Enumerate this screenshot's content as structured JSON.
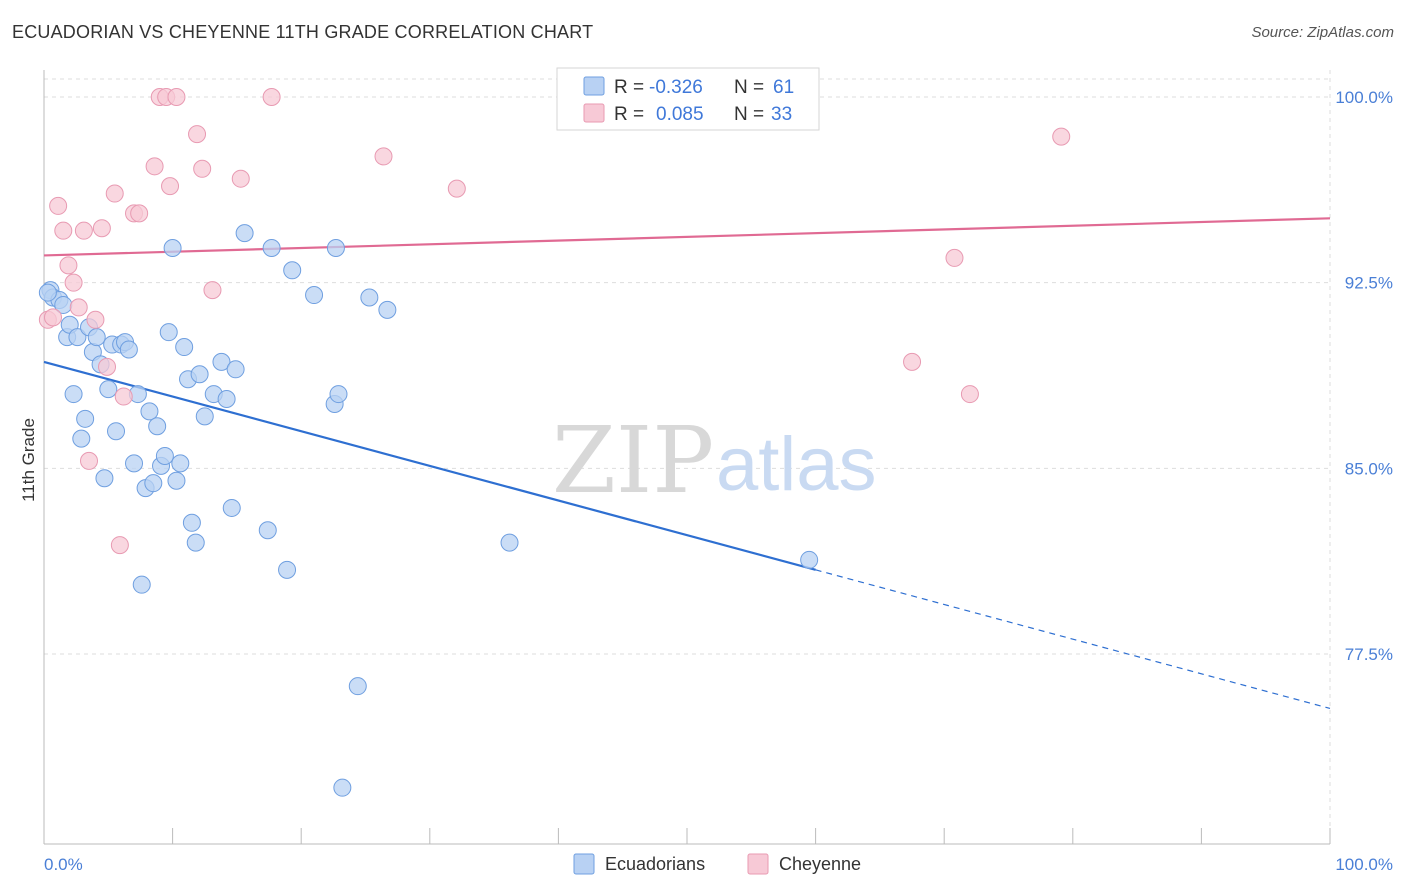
{
  "title": "ECUADORIAN VS CHEYENNE 11TH GRADE CORRELATION CHART",
  "source": "Source: ZipAtlas.com",
  "colors": {
    "blue_fill": "#b8d1f3",
    "blue_stroke": "#6f9fe0",
    "blue_line": "#2e6fd1",
    "pink_fill": "#f7c9d6",
    "pink_stroke": "#e89ab2",
    "pink_line": "#e06a93",
    "tick_text": "#4a7fd6",
    "grid": "#dddddd"
  },
  "legend": {
    "rows": [
      {
        "r_label": "R =",
        "r_value": "-0.326",
        "n_label": "N =",
        "n_value": "61",
        "color": "blue"
      },
      {
        "r_label": "R =",
        "r_value": "0.085",
        "n_label": "N =",
        "n_value": "33",
        "color": "pink"
      }
    ]
  },
  "watermark": {
    "zip": "ZIP",
    "atlas": "atlas"
  },
  "chart_data": {
    "type": "scatter",
    "xlabel": "",
    "ylabel": "11th Grade",
    "xlim": [
      0,
      100
    ],
    "ylim": [
      70.5,
      101.5
    ],
    "x_tick_labels": [
      {
        "value": 0,
        "label": "0.0%"
      },
      {
        "value": 100,
        "label": "100.0%"
      }
    ],
    "y_ticks": [
      {
        "value": 100.0,
        "label": "100.0%"
      },
      {
        "value": 92.5,
        "label": "92.5%"
      },
      {
        "value": 85.0,
        "label": "85.0%"
      },
      {
        "value": 77.5,
        "label": "77.5%"
      }
    ],
    "grid": true,
    "legend_position": "top-center",
    "series": [
      {
        "name": "Ecuadorians",
        "color": "blue",
        "r": -0.326,
        "n": 61,
        "trend": {
          "x0": 0,
          "y0": 89.3,
          "x1": 60,
          "y1": 80.9,
          "dash_to_x": 100,
          "dash_to_y": 75.3
        },
        "points": [
          [
            0.5,
            92.2
          ],
          [
            0.7,
            91.9
          ],
          [
            1.2,
            91.8
          ],
          [
            1.5,
            91.6
          ],
          [
            1.8,
            90.3
          ],
          [
            2.0,
            90.8
          ],
          [
            2.3,
            88.0
          ],
          [
            2.6,
            90.3
          ],
          [
            2.9,
            86.2
          ],
          [
            3.2,
            87.0
          ],
          [
            3.5,
            90.7
          ],
          [
            3.8,
            89.7
          ],
          [
            4.1,
            90.3
          ],
          [
            4.4,
            89.2
          ],
          [
            4.7,
            84.6
          ],
          [
            5.0,
            88.2
          ],
          [
            5.3,
            90.0
          ],
          [
            5.6,
            86.5
          ],
          [
            6.0,
            90.0
          ],
          [
            6.3,
            90.1
          ],
          [
            6.6,
            89.8
          ],
          [
            7.0,
            85.2
          ],
          [
            7.3,
            88.0
          ],
          [
            7.6,
            80.3
          ],
          [
            7.9,
            84.2
          ],
          [
            8.2,
            87.3
          ],
          [
            8.5,
            84.4
          ],
          [
            8.8,
            86.7
          ],
          [
            9.1,
            85.1
          ],
          [
            9.4,
            85.5
          ],
          [
            9.7,
            90.5
          ],
          [
            10.0,
            93.9
          ],
          [
            10.3,
            84.5
          ],
          [
            10.6,
            85.2
          ],
          [
            10.9,
            89.9
          ],
          [
            11.2,
            88.6
          ],
          [
            11.5,
            82.8
          ],
          [
            11.8,
            82.0
          ],
          [
            12.1,
            88.8
          ],
          [
            12.5,
            87.1
          ],
          [
            13.2,
            88.0
          ],
          [
            13.8,
            89.3
          ],
          [
            14.2,
            87.8
          ],
          [
            14.6,
            83.4
          ],
          [
            14.9,
            89.0
          ],
          [
            15.6,
            94.5
          ],
          [
            17.4,
            82.5
          ],
          [
            17.7,
            93.9
          ],
          [
            18.9,
            80.9
          ],
          [
            19.3,
            93.0
          ],
          [
            21.0,
            92.0
          ],
          [
            22.6,
            87.6
          ],
          [
            22.9,
            88.0
          ],
          [
            22.7,
            93.9
          ],
          [
            23.2,
            72.1
          ],
          [
            24.4,
            76.2
          ],
          [
            25.3,
            91.9
          ],
          [
            26.7,
            91.4
          ],
          [
            36.2,
            82.0
          ],
          [
            59.5,
            81.3
          ],
          [
            0.3,
            92.1
          ]
        ]
      },
      {
        "name": "Cheyenne",
        "color": "pink",
        "r": 0.085,
        "n": 33,
        "trend": {
          "x0": 0,
          "y0": 93.6,
          "x1": 100,
          "y1": 95.1
        },
        "points": [
          [
            0.3,
            91.0
          ],
          [
            0.7,
            91.1
          ],
          [
            1.1,
            95.6
          ],
          [
            1.5,
            94.6
          ],
          [
            1.9,
            93.2
          ],
          [
            2.3,
            92.5
          ],
          [
            2.7,
            91.5
          ],
          [
            3.1,
            94.6
          ],
          [
            3.5,
            85.3
          ],
          [
            4.0,
            91.0
          ],
          [
            4.5,
            94.7
          ],
          [
            4.9,
            89.1
          ],
          [
            5.5,
            96.1
          ],
          [
            5.9,
            81.9
          ],
          [
            6.2,
            87.9
          ],
          [
            7.0,
            95.3
          ],
          [
            7.4,
            95.3
          ],
          [
            8.6,
            97.2
          ],
          [
            9.0,
            100.0
          ],
          [
            9.5,
            100.0
          ],
          [
            9.8,
            96.4
          ],
          [
            10.3,
            100.0
          ],
          [
            11.9,
            98.5
          ],
          [
            12.3,
            97.1
          ],
          [
            13.1,
            92.2
          ],
          [
            15.3,
            96.7
          ],
          [
            17.7,
            100.0
          ],
          [
            26.4,
            97.6
          ],
          [
            32.1,
            96.3
          ],
          [
            67.5,
            89.3
          ],
          [
            70.8,
            93.5
          ],
          [
            72.0,
            88.0
          ],
          [
            79.1,
            98.4
          ]
        ]
      }
    ]
  }
}
